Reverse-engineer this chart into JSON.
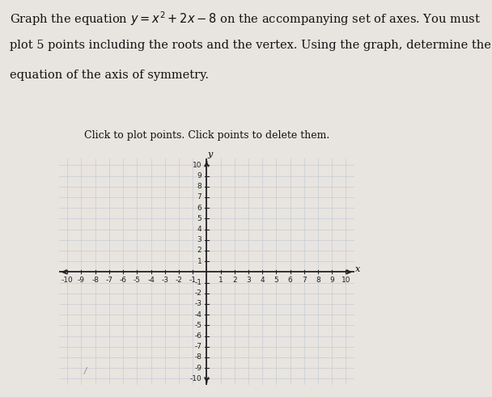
{
  "title_text": "Graph the equation $y = x^2 + 2x - 8$ on the accompanying set of axes. You must\nplot 5 points including the roots and the vertex. Using the graph, determine the\nequation of the axis of symmetry.",
  "subtitle": "Click to plot points. Click points to delete them.",
  "xmin": -10,
  "xmax": 10,
  "ymin": -10,
  "ymax": 10,
  "background_color": "#e8e4df",
  "grid_color": "#c8cdd6",
  "axis_color": "#222222",
  "text_color": "#111111",
  "graph_bg": "#f0eeeb",
  "title_fontsize": 10.5,
  "subtitle_fontsize": 9.0,
  "tick_label_fontsize": 6.5
}
